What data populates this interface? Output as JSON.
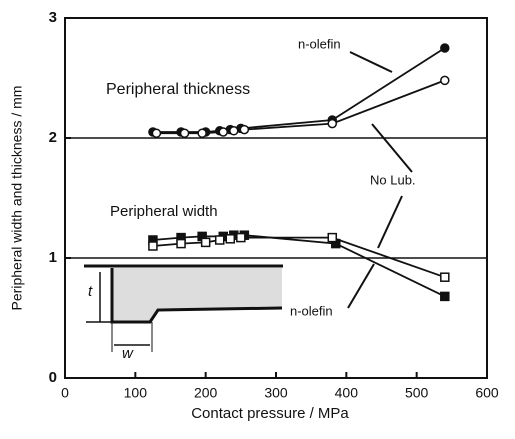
{
  "chart_data": {
    "type": "line",
    "xlabel": "Contact pressure / MPa",
    "ylabel": "Peripheral width and thickness / mm",
    "xlim": [
      0,
      600
    ],
    "xticks": [
      0,
      100,
      200,
      300,
      400,
      500,
      600
    ],
    "ylim": [
      0,
      3
    ],
    "yticks": [
      0,
      1,
      2,
      3
    ],
    "grid": true,
    "series": [
      {
        "color": "#111",
        "marker": "circle",
        "filled": true,
        "x": [
          125,
          165,
          200,
          220,
          235,
          250,
          380,
          540
        ],
        "values": [
          2.05,
          2.05,
          2.05,
          2.06,
          2.07,
          2.08,
          2.15,
          2.75
        ]
      },
      {
        "color": "#111",
        "marker": "circle",
        "filled": false,
        "x": [
          130,
          170,
          195,
          225,
          240,
          255,
          380,
          540
        ],
        "values": [
          2.04,
          2.04,
          2.04,
          2.05,
          2.06,
          2.07,
          2.12,
          2.48
        ]
      },
      {
        "color": "#111",
        "marker": "square",
        "filled": true,
        "x": [
          125,
          165,
          195,
          225,
          240,
          255,
          385,
          540
        ],
        "values": [
          1.15,
          1.17,
          1.18,
          1.18,
          1.19,
          1.19,
          1.12,
          0.68
        ]
      },
      {
        "color": "#111",
        "marker": "square",
        "filled": false,
        "x": [
          125,
          165,
          200,
          220,
          235,
          250,
          380,
          540
        ],
        "values": [
          1.1,
          1.12,
          1.13,
          1.15,
          1.16,
          1.17,
          1.17,
          0.84
        ]
      }
    ],
    "annotations": [
      "n-olefin",
      "Peripheral thickness",
      "No Lub.",
      "Peripheral width",
      "n-olefin",
      "t",
      "w"
    ]
  }
}
